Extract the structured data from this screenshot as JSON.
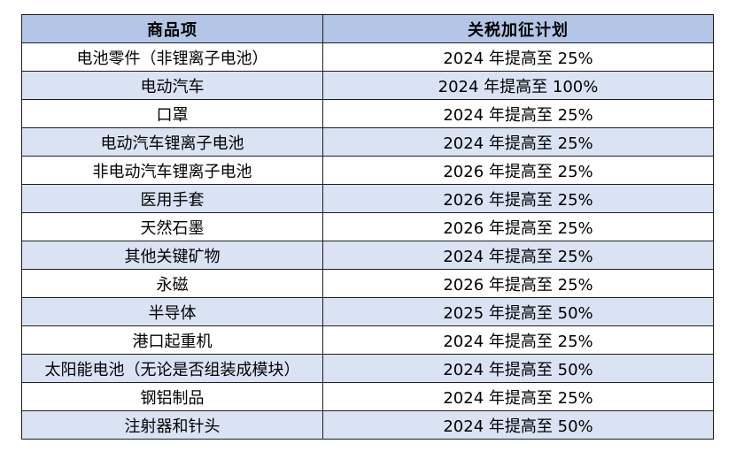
{
  "table": {
    "headers": [
      "商品项",
      "关税加征计划"
    ],
    "rows": [
      [
        "电池零件（非锂离子电池）",
        "2024 年提高至 25%"
      ],
      [
        "电动汽车",
        "2024 年提高至 100%"
      ],
      [
        "口罩",
        "2024 年提高至 25%"
      ],
      [
        "电动汽车锂离子电池",
        "2024 年提高至 25%"
      ],
      [
        "非电动汽车锂离子电池",
        "2026 年提高至 25%"
      ],
      [
        "医用手套",
        "2026 年提高至 25%"
      ],
      [
        "天然石墨",
        "2026 年提高至 25%"
      ],
      [
        "其他关键矿物",
        "2024 年提高至 25%"
      ],
      [
        "永磁",
        "2026 年提高至 25%"
      ],
      [
        "半导体",
        "2025 年提高至 50%"
      ],
      [
        "港口起重机",
        "2024 年提高至 25%"
      ],
      [
        "太阳能电池（无论是否组装成模块）",
        "2024 年提高至 50%"
      ],
      [
        "钢铝制品",
        "2024 年提高至 25%"
      ],
      [
        "注射器和针头",
        "2024 年提高至 50%"
      ]
    ],
    "colors": {
      "header_bg": "#b4c6e7",
      "alt_row_bg": "#dae3f3",
      "row_bg": "#ffffff",
      "border": "#1f1f1f"
    }
  }
}
